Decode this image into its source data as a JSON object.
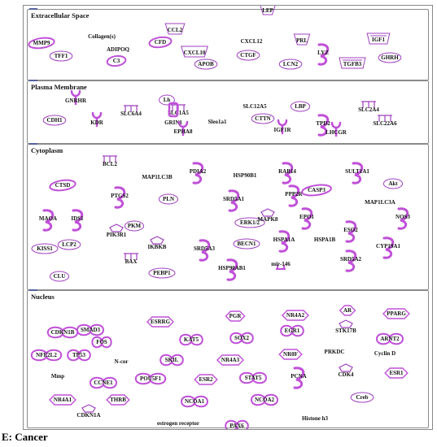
{
  "panel_caption": "E: Cancer",
  "compartments": [
    {
      "title": "Extracellular Space"
    },
    {
      "title": "Plasma Membrane"
    },
    {
      "title": "Cytoplasm"
    },
    {
      "title": "Nucleus"
    }
  ],
  "colors": {
    "shape_stroke": "#a040c0",
    "shape_fill": "#c050d8",
    "text": "#111111",
    "border": "#8a8a8a"
  },
  "molecules": [
    {
      "label": "Collagen(s)",
      "shape": "none"
    },
    {
      "label": "CCL2",
      "shape": "cytokine"
    },
    {
      "label": "LEP",
      "shape": "cytokine"
    },
    {
      "label": "MMP9",
      "shape": "peptidase"
    },
    {
      "label": "ADIPOQ",
      "shape": "none"
    },
    {
      "label": "CFD",
      "shape": "peptidase"
    },
    {
      "label": "CXCL12",
      "shape": "none"
    },
    {
      "label": "PRL",
      "shape": "cytokine"
    },
    {
      "label": "IGF1",
      "shape": "growth"
    },
    {
      "label": "TFF1",
      "shape": "circle"
    },
    {
      "label": "C3",
      "shape": "peptidase"
    },
    {
      "label": "CXCL10",
      "shape": "cytokine"
    },
    {
      "label": "CTGF",
      "shape": "circle"
    },
    {
      "label": "LYZ",
      "shape": "enzyme"
    },
    {
      "label": "GHRH",
      "shape": "circle"
    },
    {
      "label": "APOB",
      "shape": "circle"
    },
    {
      "label": "LCN2",
      "shape": "circle"
    },
    {
      "label": "TGFB3",
      "shape": "growth"
    },
    {
      "label": "GNRHR",
      "shape": "gpcr"
    },
    {
      "label": "Lh",
      "shape": "circle"
    },
    {
      "label": "SLC12A5",
      "shape": "none"
    },
    {
      "label": "LBP",
      "shape": "circle"
    },
    {
      "label": "SLC2A4",
      "shape": "transporter"
    },
    {
      "label": "SLC6A4",
      "shape": "transporter"
    },
    {
      "label": "SLC1A5",
      "shape": "transporter"
    },
    {
      "label": "CDH1",
      "shape": "circle"
    },
    {
      "label": "KDR",
      "shape": "receptor"
    },
    {
      "label": "GRIN1",
      "shape": "channel"
    },
    {
      "label": "Sleo1a1",
      "shape": "none"
    },
    {
      "label": "CTTN",
      "shape": "circle"
    },
    {
      "label": "TPD2",
      "shape": "enzyme"
    },
    {
      "label": "SLC22A6",
      "shape": "transporter"
    },
    {
      "label": "IGF1R",
      "shape": "receptor"
    },
    {
      "label": "LHCGR",
      "shape": "gpcr"
    },
    {
      "label": "EPHA8",
      "shape": "receptor"
    },
    {
      "label": "BCL2",
      "shape": "transporter"
    },
    {
      "label": "PDIA2",
      "shape": "enzyme"
    },
    {
      "label": "RAB14",
      "shape": "enzyme"
    },
    {
      "label": "SULT1A1",
      "shape": "enzyme"
    },
    {
      "label": "MAP1LC3B",
      "shape": "none"
    },
    {
      "label": "HSP90B1",
      "shape": "none"
    },
    {
      "label": "Akt",
      "shape": "circle"
    },
    {
      "label": "CTSD",
      "shape": "peptidase"
    },
    {
      "label": "PTGS2",
      "shape": "enzyme"
    },
    {
      "label": "PLN",
      "shape": "circle"
    },
    {
      "label": "SRD5A1",
      "shape": "enzyme"
    },
    {
      "label": "PPP2R",
      "shape": "enzyme"
    },
    {
      "label": "CASP3",
      "shape": "peptidase"
    },
    {
      "label": "MAP1LC3A",
      "shape": "none"
    },
    {
      "label": "MAOA",
      "shape": "enzyme"
    },
    {
      "label": "IDS1",
      "shape": "enzyme"
    },
    {
      "label": "PKM",
      "shape": "circle"
    },
    {
      "label": "ERK1/2",
      "shape": "circle"
    },
    {
      "label": "MAPK8",
      "shape": "kinase"
    },
    {
      "label": "EPO1",
      "shape": "enzyme"
    },
    {
      "label": "NOS3",
      "shape": "enzyme"
    },
    {
      "label": "PIK3R1",
      "shape": "kinase"
    },
    {
      "label": "ESO2",
      "shape": "enzyme"
    },
    {
      "label": "KISS1",
      "shape": "circle"
    },
    {
      "label": "LCP2",
      "shape": "circle"
    },
    {
      "label": "IKBKB",
      "shape": "kinase"
    },
    {
      "label": "BECN1",
      "shape": "circle"
    },
    {
      "label": "HSPA1A",
      "shape": "enzyme"
    },
    {
      "label": "HSPA1B",
      "shape": "none"
    },
    {
      "label": "CYP19A1",
      "shape": "enzyme"
    },
    {
      "label": "SRD5A3",
      "shape": "enzyme"
    },
    {
      "label": "BAX",
      "shape": "transporter"
    },
    {
      "label": "SRD5A2",
      "shape": "enzyme"
    },
    {
      "label": "CLU",
      "shape": "circle"
    },
    {
      "label": "PEBP1",
      "shape": "circle"
    },
    {
      "label": "HSP90AB1",
      "shape": "enzyme"
    },
    {
      "label": "mir-146",
      "shape": "mirna"
    },
    {
      "label": "AR",
      "shape": "nuclear"
    },
    {
      "label": "PPARG",
      "shape": "nuclear"
    },
    {
      "label": "PGR",
      "shape": "nuclear"
    },
    {
      "label": "NR4A2",
      "shape": "nuclear"
    },
    {
      "label": "ESRRG",
      "shape": "nuclear"
    },
    {
      "label": "CDKN1B",
      "shape": "tf"
    },
    {
      "label": "SMAD3",
      "shape": "tf"
    },
    {
      "label": "STK17B",
      "shape": "kinase"
    },
    {
      "label": "FOS",
      "shape": "tf"
    },
    {
      "label": "KAT5",
      "shape": "tf"
    },
    {
      "label": "SOX2",
      "shape": "tf"
    },
    {
      "label": "EGR1",
      "shape": "tf"
    },
    {
      "label": "ARNT2",
      "shape": "tf"
    },
    {
      "label": "NFE2L2",
      "shape": "tf"
    },
    {
      "label": "TP53",
      "shape": "tf"
    },
    {
      "label": "N-cor",
      "shape": "none"
    },
    {
      "label": "SKIL",
      "shape": "tf"
    },
    {
      "label": "NR4A3",
      "shape": "nuclear"
    },
    {
      "label": "NR0F",
      "shape": "nuclear"
    },
    {
      "label": "PRKDC",
      "shape": "none"
    },
    {
      "label": "Cyclin D",
      "shape": "none"
    },
    {
      "label": "Mmp",
      "shape": "none"
    },
    {
      "label": "CCNE1",
      "shape": "tf"
    },
    {
      "label": "POU5F1",
      "shape": "tf"
    },
    {
      "label": "ESR2",
      "shape": "nuclear"
    },
    {
      "label": "STAT5",
      "shape": "tf"
    },
    {
      "label": "PCNA",
      "shape": "enzyme"
    },
    {
      "label": "CDK4",
      "shape": "kinase"
    },
    {
      "label": "ESR1",
      "shape": "nuclear"
    },
    {
      "label": "NR4A1",
      "shape": "nuclear"
    },
    {
      "label": "THRB",
      "shape": "nuclear"
    },
    {
      "label": "NCOA1",
      "shape": "tf"
    },
    {
      "label": "NCOA2",
      "shape": "tf"
    },
    {
      "label": "Creb",
      "shape": "circle"
    },
    {
      "label": "CDKN1A",
      "shape": "kinase"
    },
    {
      "label": "estrogen receptor",
      "shape": "none"
    },
    {
      "label": "PAX6",
      "shape": "tf"
    },
    {
      "label": "Histone h3",
      "shape": "none"
    }
  ]
}
